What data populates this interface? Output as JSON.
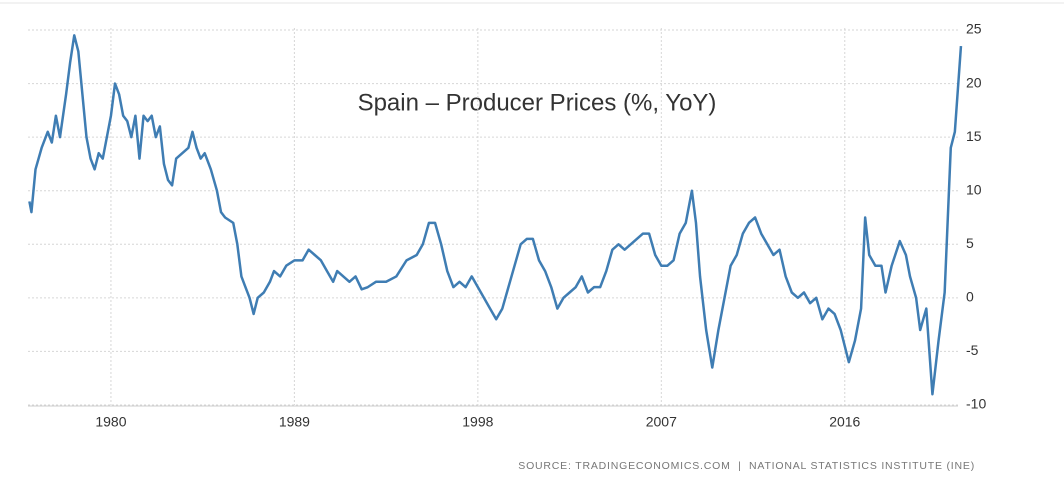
{
  "chart_data": {
    "type": "line",
    "title": "Spain – Producer Prices (%, YoY)",
    "source": "SOURCE: TRADINGECONOMICS.COM  |  NATIONAL STATISTICS INSTITUTE (INE)",
    "color": "#3f7db3",
    "x": [
      1976.0,
      1976.1,
      1976.3,
      1976.6,
      1976.9,
      1977.1,
      1977.3,
      1977.5,
      1977.8,
      1978.0,
      1978.2,
      1978.4,
      1978.6,
      1978.8,
      1979.0,
      1979.2,
      1979.4,
      1979.6,
      1979.8,
      1980.0,
      1980.2,
      1980.4,
      1980.6,
      1980.8,
      1981.0,
      1981.2,
      1981.4,
      1981.6,
      1981.8,
      1982.0,
      1982.2,
      1982.4,
      1982.6,
      1982.8,
      1983.0,
      1983.2,
      1983.5,
      1983.8,
      1984.0,
      1984.2,
      1984.4,
      1984.6,
      1984.9,
      1985.2,
      1985.4,
      1985.6,
      1986.0,
      1986.2,
      1986.4,
      1986.6,
      1986.8,
      1987.0,
      1987.2,
      1987.5,
      1987.8,
      1988.0,
      1988.3,
      1988.6,
      1989.0,
      1989.4,
      1989.7,
      1990.0,
      1990.3,
      1990.6,
      1990.9,
      1991.1,
      1991.4,
      1991.7,
      1992.0,
      1992.3,
      1992.6,
      1993.0,
      1993.5,
      1994.0,
      1994.5,
      1995.0,
      1995.3,
      1995.6,
      1995.9,
      1996.2,
      1996.5,
      1996.8,
      1997.1,
      1997.4,
      1997.7,
      1998.0,
      1998.3,
      1998.6,
      1998.9,
      1999.2,
      1999.5,
      1999.8,
      2000.1,
      2000.4,
      2000.7,
      2001.0,
      2001.3,
      2001.6,
      2001.9,
      2002.2,
      2002.5,
      2002.8,
      2003.1,
      2003.4,
      2003.7,
      2004.0,
      2004.3,
      2004.6,
      2004.9,
      2005.2,
      2005.5,
      2005.8,
      2006.1,
      2006.4,
      2006.7,
      2007.0,
      2007.3,
      2007.6,
      2007.9,
      2008.2,
      2008.5,
      2008.7,
      2008.9,
      2009.2,
      2009.5,
      2009.8,
      2010.1,
      2010.4,
      2010.7,
      2011.0,
      2011.3,
      2011.6,
      2011.9,
      2012.2,
      2012.5,
      2012.8,
      2013.1,
      2013.4,
      2013.7,
      2014.0,
      2014.3,
      2014.6,
      2014.9,
      2015.2,
      2015.5,
      2015.8,
      2016.2,
      2016.5,
      2016.8,
      2017.0,
      2017.2,
      2017.5,
      2017.8,
      2018.0,
      2018.3,
      2018.7,
      2019.0,
      2019.2,
      2019.5,
      2019.7,
      2020.0,
      2020.3,
      2020.6,
      2020.9,
      2021.2,
      2021.4,
      2021.7
    ],
    "values": [
      9,
      8,
      12,
      14,
      15.5,
      14.5,
      17,
      15,
      19,
      22,
      24.5,
      23,
      19,
      15,
      13,
      12,
      13.5,
      13,
      15,
      17,
      20,
      19,
      17,
      16.5,
      15,
      17,
      13,
      17,
      16.5,
      17,
      15,
      16,
      12.5,
      11,
      10.5,
      13,
      13.5,
      14,
      15.5,
      14,
      13,
      13.5,
      12,
      10,
      8,
      7.5,
      7,
      5,
      2,
      1,
      0,
      -1.5,
      0,
      0.5,
      1.5,
      2.5,
      2,
      3,
      3.5,
      3.5,
      4.5,
      4,
      3.5,
      2.5,
      1.5,
      2.5,
      2,
      1.5,
      2,
      0.8,
      1,
      1.5,
      1.5,
      2,
      3.5,
      4,
      5,
      7,
      7,
      5,
      2.5,
      1,
      1.5,
      1,
      2,
      1,
      0,
      -1,
      -2,
      -1,
      1,
      3,
      5,
      5.5,
      5.5,
      3.5,
      2.5,
      1,
      -1,
      0,
      0.5,
      1,
      2,
      0.5,
      1,
      1,
      2.5,
      4.5,
      5,
      4.5,
      5,
      5.5,
      6,
      6,
      4,
      3,
      3,
      3.5,
      6,
      7,
      10,
      7,
      2,
      -3,
      -6.5,
      -3,
      0,
      3,
      4,
      6,
      7,
      7.5,
      6,
      5,
      4,
      4.5,
      2,
      0.5,
      0,
      0.5,
      -0.5,
      0,
      -2,
      -1,
      -1.5,
      -3,
      -6,
      -4,
      -1,
      7.5,
      4,
      3,
      3,
      0.5,
      3,
      5.3,
      4,
      2,
      0,
      -3,
      -1,
      -9,
      -4,
      0.5,
      14,
      15.5,
      23.5
    ],
    "xlim": [
      1976,
      2021.8
    ],
    "xticks": [
      1980,
      1989,
      1998,
      2007,
      2016
    ],
    "ylim": [
      -10,
      25
    ],
    "yticks": [
      -10,
      -5,
      0,
      5,
      10,
      15,
      20,
      25
    ],
    "grid": true
  }
}
